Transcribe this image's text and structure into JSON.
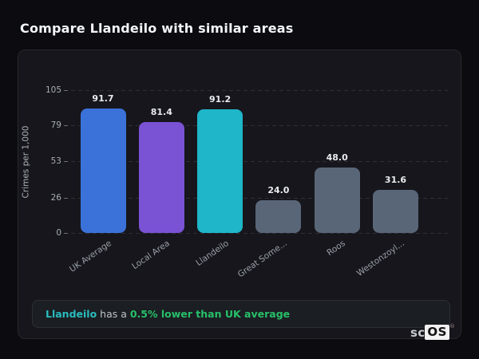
{
  "page": {
    "title": "Compare Llandeilo with similar areas"
  },
  "chart_data": {
    "type": "bar",
    "categories": [
      "UK Average",
      "Local Area",
      "Llandeilo",
      "Great Some...",
      "Roos",
      "Westonzoyl..."
    ],
    "values": [
      91.7,
      81.4,
      91.2,
      24.0,
      48.0,
      31.6
    ],
    "value_labels": [
      "91.7",
      "81.4",
      "91.2",
      "24.0",
      "48.0",
      "31.6"
    ],
    "bar_colors": [
      "#3b72d9",
      "#7a52d4",
      "#1fb6c9",
      "#596678",
      "#596678",
      "#596678"
    ],
    "title": "",
    "xlabel": "",
    "ylabel": "Crimes per 1,000",
    "yticks": [
      0,
      26,
      53,
      79,
      105
    ],
    "ylim": [
      0,
      105
    ],
    "grid": "horizontal-dashed",
    "legend": "none",
    "highlight_category": "Llandeilo"
  },
  "note": {
    "area_name": "Llandeilo",
    "connector": " has a ",
    "highlight": "0.5% lower than UK average",
    "area_color": "#2abdbd",
    "highlight_color": "#27c06a"
  },
  "branding": {
    "prefix": "sc",
    "suffix": "OS",
    "registered": "®"
  },
  "colors": {
    "page_bg": "#0c0c10",
    "card_bg": "#16161c",
    "card_border": "#27272e",
    "grid": "#2e2e38",
    "axis_text": "#a8adb5"
  }
}
